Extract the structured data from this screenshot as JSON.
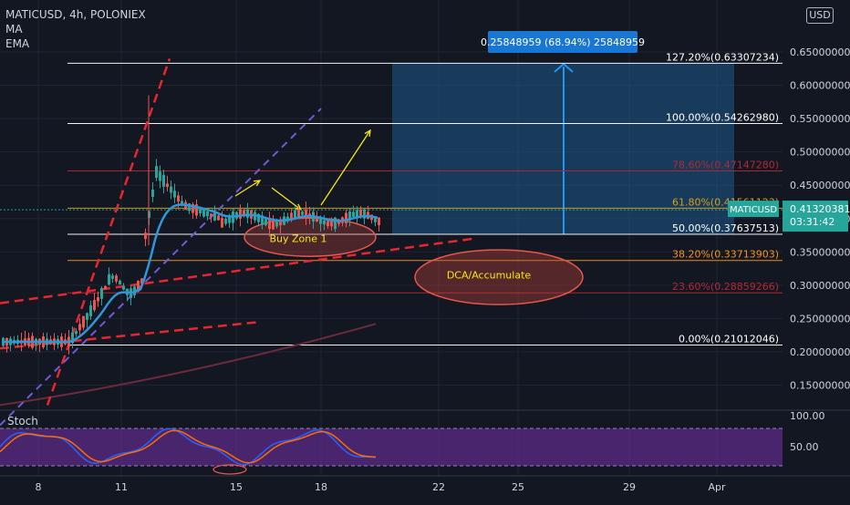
{
  "header": {
    "symbol_line": "MATICUSD, 4h, POLONIEX",
    "indicator_1": "MA",
    "indicator_2": "EMA",
    "currency_button": "USD"
  },
  "price_axis": {
    "ticks": [
      "0.65000000",
      "0.60000000",
      "0.55000000",
      "0.50000000",
      "0.45000000",
      "0.40000000",
      "0.35000000",
      "0.30000000",
      "0.25000000",
      "0.20000000",
      "0.15000000"
    ],
    "tick_values": [
      0.65,
      0.6,
      0.55,
      0.5,
      0.45,
      0.4,
      0.35,
      0.3,
      0.25,
      0.2,
      0.15
    ],
    "current_symbol": "MATICUSD",
    "current_price": "0.41320381",
    "current_price_value": 0.4132,
    "countdown": "03:31:42"
  },
  "time_axis": {
    "ticks": [
      "8",
      "11",
      "15",
      "18",
      "22",
      "25",
      "29",
      "Apr"
    ]
  },
  "fib_levels": [
    {
      "label": "127.20%(0.63307234)",
      "value": 0.63307234,
      "color": "#ffffff"
    },
    {
      "label": "100.00%(0.54262980)",
      "value": 0.5426298,
      "color": "#ffffff"
    },
    {
      "label": "78.60%(0.47147280)",
      "value": 0.4714728,
      "color": "#b22833"
    },
    {
      "label": "61.80%(0.41561123)",
      "value": 0.41561123,
      "color": "#d4a017"
    },
    {
      "label": "50.00%(0.37637513)",
      "value": 0.37637513,
      "color": "#ffffff"
    },
    {
      "label": "38.20%(0.33713903)",
      "value": 0.33713903,
      "color": "#f7931a"
    },
    {
      "label": "23.60%(0.28859266)",
      "value": 0.28859266,
      "color": "#b22833"
    },
    {
      "label": "0.00%(0.21012046)",
      "value": 0.21012046,
      "color": "#ffffff"
    }
  ],
  "annotations": {
    "measure_label": "0.25848959 (68.94%) 25848959",
    "buy_zone": "Buy Zone 1",
    "dca": "DCA/Accumulate"
  },
  "stoch": {
    "title": "Stoch",
    "ticks": [
      "100.00",
      "50.00"
    ]
  },
  "colors": {
    "background": "#131722",
    "up_candle": "#26a69a",
    "down_candle": "#ef5350",
    "ema_line": "#2f97d8",
    "ma_line": "#6b2a3a",
    "trend_red": "#e8262e",
    "trend_purple": "#6e5bd6",
    "measure_blue": "#2196f3",
    "current_price_bg": "#26a69a",
    "stoch_fill": "#5b2b87",
    "annotation_yellow": "#f4e71a"
  }
}
